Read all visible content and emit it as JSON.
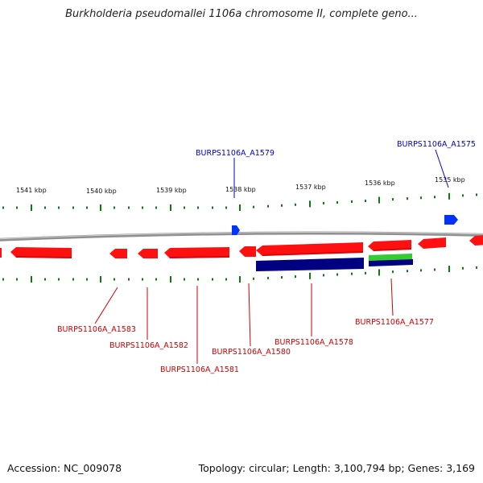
{
  "title": "Burkholderia pseudomallei 1106a chromosome II, complete geno...",
  "accession_text": "Accession: NC_009078",
  "topology_text": "Topology: circular; Length: 3,100,794 bp; Genes: 3,169",
  "colors": {
    "forward_gene": "#ff0000",
    "reverse_gene": "#ff0000",
    "forward_label": "#0000cc",
    "reverse_label": "#cc0000",
    "backbone": "#909090",
    "tick": "#117711",
    "navy_feature": "#000080",
    "green_feature": "#33cc33",
    "blue_feature": "#0033ff"
  },
  "kbp_ticks": [
    {
      "label": "1541 kbp"
    },
    {
      "label": "1540 kbp"
    },
    {
      "label": "1539 kbp"
    },
    {
      "label": "1538 kbp"
    },
    {
      "label": "1537 kbp"
    },
    {
      "label": "1536 kbp"
    },
    {
      "label": "1535 kbp"
    }
  ],
  "gene_labels": [
    {
      "text": "BURPS1106A_A1579",
      "strand": "forward"
    },
    {
      "text": "BURPS1106A_A1575",
      "strand": "forward"
    },
    {
      "text": "BURPS1106A_A1583",
      "strand": "reverse"
    },
    {
      "text": "BURPS1106A_A1582",
      "strand": "reverse"
    },
    {
      "text": "BURPS1106A_A1581",
      "strand": "reverse"
    },
    {
      "text": "BURPS1106A_A1580",
      "strand": "reverse"
    },
    {
      "text": "BURPS1106A_A1578",
      "strand": "reverse"
    },
    {
      "text": "BURPS1106A_A1577",
      "strand": "reverse"
    }
  ]
}
